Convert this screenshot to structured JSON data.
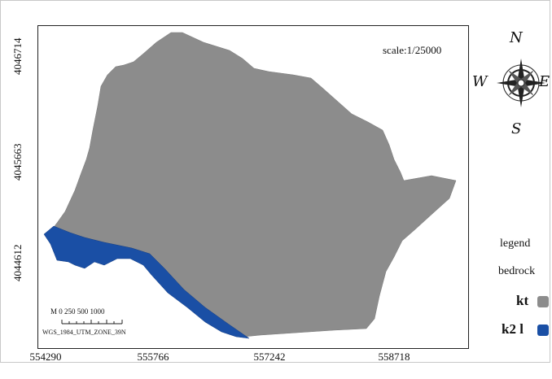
{
  "map": {
    "scale_text": "scale:1/25000",
    "y_ticks": [
      "4046714",
      "4045663",
      "4044612"
    ],
    "x_ticks": [
      "554290",
      "555766",
      "557242",
      "558718"
    ],
    "scale_bar": {
      "ticks_text": "M 0   250  500  1000",
      "projection": "WGS_1984_UTM_ZONE_39N"
    },
    "units": [
      {
        "code": "kt",
        "color": "#8c8c8c"
      },
      {
        "code": "k2 l",
        "color": "#1a4fa5"
      }
    ]
  },
  "compass": {
    "n": "N",
    "s": "S",
    "e": "E",
    "w": "W",
    "icon": "compass-rose-icon"
  },
  "legend": {
    "title": "legend",
    "subtitle": "bedrock",
    "items": [
      {
        "label": "kt",
        "color": "#8c8c8c"
      },
      {
        "label": "k2 l",
        "color": "#1a4fa5"
      }
    ]
  }
}
